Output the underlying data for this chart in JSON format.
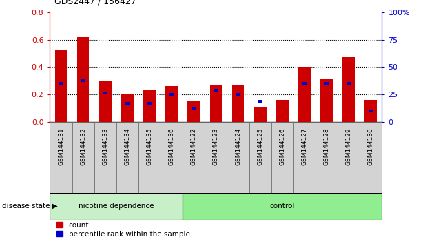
{
  "title": "GDS2447 / 156427",
  "categories": [
    "GSM144131",
    "GSM144132",
    "GSM144133",
    "GSM144134",
    "GSM144135",
    "GSM144136",
    "GSM144122",
    "GSM144123",
    "GSM144124",
    "GSM144125",
    "GSM144126",
    "GSM144127",
    "GSM144128",
    "GSM144129",
    "GSM144130"
  ],
  "red_values": [
    0.52,
    0.62,
    0.3,
    0.2,
    0.23,
    0.26,
    0.15,
    0.27,
    0.27,
    0.11,
    0.16,
    0.4,
    0.31,
    0.47,
    0.16
  ],
  "blue_vals": [
    0.28,
    0.3,
    0.21,
    0.135,
    0.135,
    0.2,
    0.1,
    0.23,
    0.2,
    0.15,
    0.0,
    0.28,
    0.28,
    0.28,
    0.08
  ],
  "red_color": "#cc0000",
  "blue_color": "#0000cc",
  "ylim_left": [
    0,
    0.8
  ],
  "ylim_right": [
    0,
    100
  ],
  "yticks_left": [
    0,
    0.2,
    0.4,
    0.6,
    0.8
  ],
  "yticks_right": [
    0,
    25,
    50,
    75,
    100
  ],
  "ytick_right_labels": [
    "0",
    "25",
    "50",
    "75",
    "100%"
  ],
  "nicotine_count": 6,
  "control_count": 9,
  "group1_label": "nicotine dependence",
  "group2_label": "control",
  "group_label": "disease state",
  "legend_count": "count",
  "legend_pct": "percentile rank within the sample",
  "bg_plot": "#ffffff",
  "tick_bg": "#d3d3d3",
  "nic_bg": "#c8f0c8",
  "ctrl_bg": "#90ee90"
}
